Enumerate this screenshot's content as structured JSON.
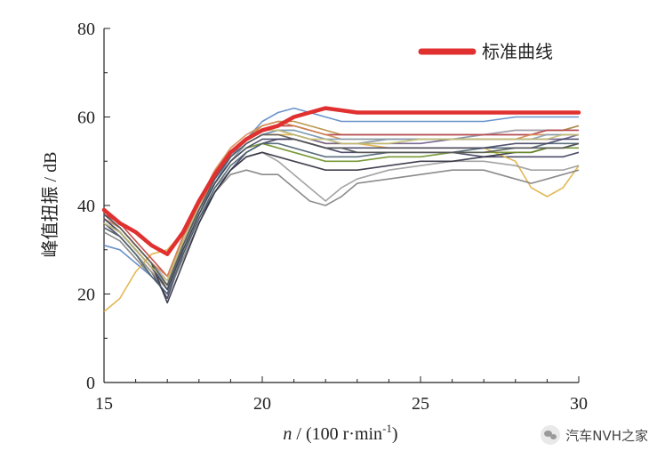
{
  "chart_data": {
    "type": "line",
    "title": "",
    "xlabel_italic": "n",
    "xlabel_rest": " / (100 r·min",
    "xlabel_sup": "-1",
    "xlabel_close": ")",
    "ylabel": "峰值扭振 / dB",
    "xlim": [
      15,
      30
    ],
    "ylim": [
      0,
      80
    ],
    "xticks": [
      "15",
      "20",
      "25",
      "30"
    ],
    "yticks": [
      "0",
      "20",
      "40",
      "60",
      "80"
    ],
    "grid": false,
    "legend": {
      "position": "top-right",
      "label": "标准曲线"
    },
    "standard_curve": {
      "name": "标准曲线",
      "color": "#e03030",
      "x": [
        15,
        15.5,
        16,
        16.5,
        17,
        17.5,
        18,
        18.5,
        19,
        19.5,
        20,
        20.5,
        21,
        21.5,
        22,
        23,
        24,
        25,
        26,
        27,
        28,
        29,
        30
      ],
      "y": [
        39,
        36,
        34,
        31,
        29,
        34,
        41,
        47,
        52,
        55,
        57,
        58,
        60,
        61,
        62,
        61,
        61,
        61,
        61,
        61,
        61,
        61,
        61
      ]
    },
    "measured_x": [
      15,
      15.5,
      16,
      16.5,
      17,
      17.5,
      18,
      18.5,
      19,
      19.5,
      20,
      20.5,
      21,
      21.5,
      22,
      22.5,
      23,
      24,
      25,
      26,
      27,
      28,
      28.5,
      29,
      29.5,
      30
    ],
    "series": [
      {
        "color": "#7f8fa6",
        "values": [
          37,
          34,
          30,
          26,
          22,
          32,
          39,
          45,
          50,
          54,
          56,
          57,
          57,
          56,
          55,
          54,
          54,
          55,
          55,
          55,
          56,
          56,
          56,
          57,
          57,
          58
        ]
      },
      {
        "color": "#5b87c5",
        "values": [
          31,
          30,
          27,
          24,
          20,
          31,
          39,
          45,
          51,
          55,
          59,
          61,
          62,
          61,
          60,
          59,
          59,
          59,
          59,
          59,
          59,
          60,
          60,
          60,
          60,
          60
        ]
      },
      {
        "color": "#3a3a5c",
        "values": [
          36,
          33,
          29,
          25,
          19,
          29,
          37,
          43,
          48,
          52,
          54,
          55,
          55,
          54,
          53,
          52,
          52,
          52,
          52,
          52,
          51,
          51,
          51,
          51,
          51,
          52
        ]
      },
      {
        "color": "#e0b040",
        "values": [
          16,
          19,
          25,
          29,
          30,
          34,
          40,
          46,
          51,
          54,
          56,
          56,
          56,
          55,
          54,
          54,
          54,
          53,
          53,
          53,
          53,
          50,
          44,
          42,
          44,
          49
        ]
      },
      {
        "color": "#b58a3a",
        "values": [
          35,
          33,
          29,
          25,
          22,
          31,
          39,
          46,
          52,
          55,
          58,
          59,
          59,
          58,
          57,
          56,
          56,
          56,
          56,
          56,
          56,
          57,
          57,
          57,
          57,
          58
        ]
      },
      {
        "color": "#808080",
        "values": [
          34,
          32,
          28,
          24,
          20,
          28,
          36,
          43,
          47,
          48,
          47,
          47,
          44,
          41,
          40,
          42,
          45,
          46,
          47,
          48,
          48,
          46,
          45,
          46,
          47,
          48
        ]
      },
      {
        "color": "#9a9a9a",
        "values": [
          35,
          33,
          29,
          25,
          21,
          30,
          37,
          44,
          48,
          51,
          52,
          50,
          47,
          44,
          41,
          44,
          46,
          48,
          49,
          50,
          50,
          49,
          48,
          48,
          48,
          49
        ]
      },
      {
        "color": "#2f2f3f",
        "values": [
          38,
          35,
          31,
          27,
          18,
          27,
          36,
          43,
          48,
          51,
          52,
          51,
          50,
          49,
          48,
          48,
          48,
          49,
          50,
          50,
          51,
          52,
          52,
          53,
          53,
          54
        ]
      },
      {
        "color": "#6b8e23",
        "values": [
          36,
          34,
          30,
          26,
          21,
          30,
          38,
          45,
          50,
          53,
          54,
          53,
          52,
          51,
          50,
          50,
          50,
          51,
          51,
          52,
          52,
          52,
          52,
          53,
          53,
          53
        ]
      },
      {
        "color": "#a0a0c0",
        "values": [
          37,
          35,
          31,
          27,
          23,
          32,
          40,
          47,
          52,
          55,
          57,
          58,
          58,
          57,
          56,
          56,
          56,
          56,
          56,
          56,
          56,
          57,
          57,
          57,
          57,
          57
        ]
      },
      {
        "color": "#6a5a8a",
        "values": [
          36,
          34,
          30,
          26,
          22,
          31,
          39,
          46,
          51,
          54,
          56,
          57,
          56,
          55,
          54,
          54,
          54,
          54,
          54,
          55,
          55,
          55,
          55,
          55,
          55,
          56
        ]
      },
      {
        "color": "#c04040",
        "values": [
          38,
          36,
          32,
          28,
          24,
          33,
          40,
          47,
          52,
          55,
          57,
          58,
          58,
          57,
          56,
          56,
          56,
          56,
          56,
          56,
          56,
          56,
          56,
          57,
          57,
          57
        ]
      },
      {
        "color": "#4a6070",
        "values": [
          35,
          33,
          29,
          24,
          20,
          29,
          37,
          44,
          49,
          52,
          54,
          54,
          53,
          52,
          51,
          51,
          51,
          52,
          52,
          52,
          53,
          53,
          53,
          54,
          54,
          54
        ]
      },
      {
        "color": "#d08a50",
        "values": [
          37,
          35,
          31,
          27,
          24,
          33,
          41,
          48,
          53,
          56,
          58,
          59,
          58,
          57,
          56,
          55,
          55,
          55,
          55,
          55,
          55,
          55,
          56,
          56,
          56,
          56
        ]
      },
      {
        "color": "#7fa0b8",
        "values": [
          36,
          34,
          30,
          26,
          22,
          31,
          39,
          46,
          51,
          54,
          56,
          57,
          57,
          56,
          55,
          55,
          55,
          55,
          55,
          55,
          55,
          55,
          55,
          56,
          56,
          56
        ]
      },
      {
        "color": "#404060",
        "values": [
          37,
          34,
          30,
          26,
          21,
          30,
          38,
          45,
          50,
          53,
          55,
          55,
          55,
          54,
          53,
          53,
          53,
          53,
          53,
          53,
          53,
          54,
          54,
          54,
          55,
          55
        ]
      },
      {
        "color": "#c8c070",
        "values": [
          36,
          34,
          30,
          26,
          23,
          32,
          40,
          47,
          52,
          55,
          57,
          57,
          56,
          55,
          55,
          54,
          54,
          54,
          55,
          55,
          55,
          55,
          55,
          55,
          56,
          56
        ]
      },
      {
        "color": "#555555",
        "values": [
          38,
          35,
          31,
          27,
          22,
          31,
          39,
          46,
          51,
          54,
          56,
          56,
          55,
          54,
          53,
          53,
          52,
          52,
          52,
          52,
          52,
          53,
          53,
          53,
          53,
          54
        ]
      }
    ]
  },
  "watermark": {
    "text": "汽车NVH之家",
    "icon": "wechat-icon"
  }
}
